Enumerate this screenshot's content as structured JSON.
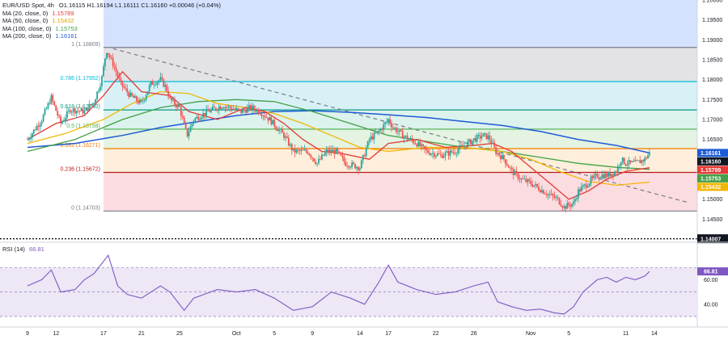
{
  "header": {
    "symbol": "EUR/USD Spot, 4h",
    "ohlc": "O1.16115 H1.16194 L1.16111 C1.16160 +0.00046 (+0.04%)"
  },
  "indicators": [
    {
      "label": "MA (20, close, 0)",
      "value": "1.15789",
      "color": "#e53935"
    },
    {
      "label": "MA (50, close, 0)",
      "value": "1.15432",
      "color": "#f2b705"
    },
    {
      "label": "MA (100, close, 0)",
      "value": "1.15753",
      "color": "#43a047"
    },
    {
      "label": "MA (200, close, 0)",
      "value": "1.16161",
      "color": "#1e5bd6"
    }
  ],
  "colors": {
    "up": "#26a69a",
    "down": "#ef5350",
    "ma20": "#e53935",
    "ma50": "#f2b705",
    "ma100": "#43a047",
    "ma200": "#1e5bd6",
    "rsi": "#7e57c2",
    "trendline": "#787b86",
    "current_price_box": "#131722"
  },
  "chart_data": {
    "type": "candlestick",
    "ylim": [
      1.14,
      1.2
    ],
    "y_ticks": [
      "1.14500",
      "1.15000",
      "1.15500",
      "1.16000",
      "1.16500",
      "1.17000",
      "1.17500",
      "1.18000",
      "1.18500",
      "1.19000",
      "1.19500",
      "1.20000"
    ],
    "x_ticks": [
      {
        "label": "9",
        "day": 0
      },
      {
        "label": "12",
        "day": 3
      },
      {
        "label": "17",
        "day": 8
      },
      {
        "label": "21",
        "day": 12
      },
      {
        "label": "25",
        "day": 16
      },
      {
        "label": "Oct",
        "day": 22
      },
      {
        "label": "5",
        "day": 26
      },
      {
        "label": "9",
        "day": 30
      },
      {
        "label": "14",
        "day": 35
      },
      {
        "label": "17",
        "day": 38
      },
      {
        "label": "22",
        "day": 43
      },
      {
        "label": "26",
        "day": 47
      },
      {
        "label": "Nov",
        "day": 53
      },
      {
        "label": "5",
        "day": 57
      },
      {
        "label": "11",
        "day": 63
      },
      {
        "label": "14",
        "day": 66
      }
    ],
    "fibonacci": [
      {
        "label": "1 (1.18809)",
        "level": 1.18809,
        "line": "#787b86"
      },
      {
        "label": "0.786 (1.17952)",
        "level": 1.17952,
        "line": "#00bcd4"
      },
      {
        "label": "0.618 (1.17240)",
        "level": 1.1724,
        "line": "#089981"
      },
      {
        "label": "0.5 (1.16758)",
        "level": 1.16758,
        "line": "#4caf50"
      },
      {
        "label": "0.382 (1.16271)",
        "level": 1.16271,
        "line": "#f57c00"
      },
      {
        "label": "0.236 (1.15672)",
        "level": 1.15672,
        "line": "#b71c1c"
      },
      {
        "label": "0 (1.14703)",
        "level": 1.14703,
        "line": "#787b86"
      }
    ],
    "fib_bands": [
      {
        "from": 1.18809,
        "to": 1.2,
        "color": "#d4e2ff"
      },
      {
        "from": 1.17952,
        "to": 1.18809,
        "color": "#e3e3e6"
      },
      {
        "from": 1.1724,
        "to": 1.17952,
        "color": "#d8f1f7"
      },
      {
        "from": 1.16758,
        "to": 1.1724,
        "color": "#dcf2ec"
      },
      {
        "from": 1.16271,
        "to": 1.16758,
        "color": "#e4f3e2"
      },
      {
        "from": 1.15672,
        "to": 1.16271,
        "color": "#fdefdb"
      },
      {
        "from": 1.14703,
        "to": 1.15672,
        "color": "#fbdde1"
      }
    ],
    "horizontal_level": {
      "value": 1.14007,
      "label": "1.14007"
    },
    "trendline": {
      "from": {
        "day": 9.0,
        "price": 1.1878
      },
      "to": {
        "day": 69.5,
        "price": 1.1492
      }
    },
    "price_labels": [
      {
        "label": "1.16161",
        "value": 1.16161,
        "color": "#1e5bd6"
      },
      {
        "label": "1.16160",
        "value": 1.1616,
        "color": "#131722"
      },
      {
        "label": "1.15789",
        "value": 1.15789,
        "color": "#e53935"
      },
      {
        "label": "1.15753",
        "value": 1.15753,
        "color": "#43a047"
      },
      {
        "label": "1.15432",
        "value": 1.15432,
        "color": "#f2b705"
      }
    ],
    "close_path": [
      [
        0.0,
        1.165
      ],
      [
        1.5,
        1.17
      ],
      [
        2.5,
        1.1755
      ],
      [
        3.5,
        1.169
      ],
      [
        4.5,
        1.1725
      ],
      [
        6.0,
        1.172
      ],
      [
        7.0,
        1.1745
      ],
      [
        7.8,
        1.18
      ],
      [
        8.3,
        1.1875
      ],
      [
        9.0,
        1.184
      ],
      [
        9.8,
        1.179
      ],
      [
        10.8,
        1.176
      ],
      [
        12.0,
        1.174
      ],
      [
        13.0,
        1.179
      ],
      [
        14.0,
        1.18
      ],
      [
        14.6,
        1.178
      ],
      [
        15.0,
        1.175
      ],
      [
        16.0,
        1.173
      ],
      [
        16.8,
        1.166
      ],
      [
        17.5,
        1.17
      ],
      [
        19.0,
        1.172
      ],
      [
        20.5,
        1.1735
      ],
      [
        21.5,
        1.1728
      ],
      [
        22.5,
        1.172
      ],
      [
        23.5,
        1.173
      ],
      [
        24.5,
        1.172
      ],
      [
        25.5,
        1.17
      ],
      [
        27.0,
        1.166
      ],
      [
        28.0,
        1.162
      ],
      [
        29.5,
        1.162
      ],
      [
        30.5,
        1.159
      ],
      [
        31.5,
        1.162
      ],
      [
        32.5,
        1.162
      ],
      [
        33.5,
        1.159
      ],
      [
        35.0,
        1.158
      ],
      [
        36.0,
        1.165
      ],
      [
        37.0,
        1.167
      ],
      [
        38.0,
        1.17
      ],
      [
        38.5,
        1.168
      ],
      [
        39.5,
        1.166
      ],
      [
        41.0,
        1.164
      ],
      [
        42.0,
        1.162
      ],
      [
        43.5,
        1.161
      ],
      [
        45.0,
        1.162
      ],
      [
        46.0,
        1.1635
      ],
      [
        47.0,
        1.165
      ],
      [
        48.0,
        1.166
      ],
      [
        48.6,
        1.1655
      ],
      [
        49.3,
        1.162
      ],
      [
        50.2,
        1.16
      ],
      [
        51.0,
        1.157
      ],
      [
        52.0,
        1.155
      ],
      [
        53.0,
        1.154
      ],
      [
        54.0,
        1.1525
      ],
      [
        55.0,
        1.151
      ],
      [
        55.8,
        1.15
      ],
      [
        56.5,
        1.148
      ],
      [
        57.5,
        1.149
      ],
      [
        58.0,
        1.152
      ],
      [
        59.0,
        1.154
      ],
      [
        60.0,
        1.156
      ],
      [
        61.0,
        1.156
      ],
      [
        62.0,
        1.157
      ],
      [
        62.5,
        1.16
      ],
      [
        63.0,
        1.159
      ],
      [
        64.0,
        1.159
      ],
      [
        65.0,
        1.16
      ],
      [
        65.5,
        1.1616
      ]
    ],
    "ma20": [
      [
        0.0,
        1.165
      ],
      [
        3.0,
        1.169
      ],
      [
        6.0,
        1.171
      ],
      [
        8.0,
        1.176
      ],
      [
        10.0,
        1.182
      ],
      [
        12.0,
        1.177
      ],
      [
        15.0,
        1.176
      ],
      [
        17.0,
        1.172
      ],
      [
        20.0,
        1.17
      ],
      [
        23.0,
        1.173
      ],
      [
        25.0,
        1.172
      ],
      [
        27.0,
        1.169
      ],
      [
        29.0,
        1.165
      ],
      [
        31.0,
        1.162
      ],
      [
        33.0,
        1.1615
      ],
      [
        36.0,
        1.16
      ],
      [
        38.0,
        1.164
      ],
      [
        41.0,
        1.165
      ],
      [
        44.0,
        1.163
      ],
      [
        47.0,
        1.1635
      ],
      [
        49.0,
        1.164
      ],
      [
        51.0,
        1.162
      ],
      [
        53.0,
        1.158
      ],
      [
        55.0,
        1.154
      ],
      [
        57.0,
        1.15
      ],
      [
        59.0,
        1.152
      ],
      [
        61.0,
        1.155
      ],
      [
        63.0,
        1.157
      ],
      [
        65.5,
        1.1579
      ]
    ],
    "ma50": [
      [
        0.0,
        1.164
      ],
      [
        4.0,
        1.1665
      ],
      [
        8.0,
        1.17
      ],
      [
        11.0,
        1.174
      ],
      [
        14.0,
        1.177
      ],
      [
        17.0,
        1.1765
      ],
      [
        20.0,
        1.174
      ],
      [
        23.0,
        1.173
      ],
      [
        26.0,
        1.1715
      ],
      [
        29.0,
        1.169
      ],
      [
        32.0,
        1.166
      ],
      [
        35.0,
        1.163
      ],
      [
        38.0,
        1.162
      ],
      [
        42.0,
        1.163
      ],
      [
        46.0,
        1.163
      ],
      [
        50.0,
        1.162
      ],
      [
        53.0,
        1.16
      ],
      [
        56.0,
        1.157
      ],
      [
        59.0,
        1.1545
      ],
      [
        62.0,
        1.1535
      ],
      [
        65.5,
        1.1543
      ]
    ],
    "ma100": [
      [
        0.0,
        1.162
      ],
      [
        5.0,
        1.165
      ],
      [
        10.0,
        1.17
      ],
      [
        14.0,
        1.173
      ],
      [
        18.0,
        1.1745
      ],
      [
        22.0,
        1.175
      ],
      [
        26.0,
        1.1745
      ],
      [
        30.0,
        1.172
      ],
      [
        34.0,
        1.169
      ],
      [
        38.0,
        1.166
      ],
      [
        42.0,
        1.1645
      ],
      [
        46.0,
        1.163
      ],
      [
        50.0,
        1.162
      ],
      [
        54.0,
        1.1605
      ],
      [
        58.0,
        1.159
      ],
      [
        62.0,
        1.158
      ],
      [
        65.5,
        1.1575
      ]
    ],
    "ma200": [
      [
        0.0,
        1.163
      ],
      [
        5.0,
        1.164
      ],
      [
        10.0,
        1.166
      ],
      [
        14.0,
        1.168
      ],
      [
        18.0,
        1.1695
      ],
      [
        22.0,
        1.171
      ],
      [
        26.0,
        1.172
      ],
      [
        30.0,
        1.1722
      ],
      [
        34.0,
        1.1718
      ],
      [
        38.0,
        1.1712
      ],
      [
        42.0,
        1.1705
      ],
      [
        46.0,
        1.1695
      ],
      [
        50.0,
        1.1685
      ],
      [
        54.0,
        1.167
      ],
      [
        58.0,
        1.165
      ],
      [
        62.0,
        1.1635
      ],
      [
        65.5,
        1.1616
      ]
    ],
    "rsi": {
      "label": "RSI (14)",
      "value": "66.81",
      "ylim": [
        26,
        84
      ],
      "y_ticks": [
        "40.00",
        "60.00"
      ],
      "guides": [
        30,
        50,
        70
      ],
      "values": [
        [
          0.0,
          55
        ],
        [
          1.5,
          60
        ],
        [
          2.5,
          68
        ],
        [
          3.5,
          50
        ],
        [
          5.0,
          52
        ],
        [
          6.0,
          60
        ],
        [
          7.0,
          65
        ],
        [
          8.0,
          75
        ],
        [
          8.5,
          80
        ],
        [
          9.5,
          55
        ],
        [
          10.5,
          48
        ],
        [
          12.0,
          45
        ],
        [
          14.0,
          55
        ],
        [
          15.0,
          50
        ],
        [
          16.5,
          35
        ],
        [
          17.5,
          45
        ],
        [
          20.0,
          52
        ],
        [
          22.0,
          50
        ],
        [
          24.0,
          52
        ],
        [
          26.0,
          45
        ],
        [
          28.0,
          35
        ],
        [
          30.0,
          38
        ],
        [
          32.0,
          50
        ],
        [
          34.0,
          45
        ],
        [
          35.5,
          40
        ],
        [
          37.0,
          58
        ],
        [
          38.0,
          72
        ],
        [
          39.0,
          58
        ],
        [
          41.0,
          52
        ],
        [
          43.0,
          48
        ],
        [
          45.0,
          50
        ],
        [
          47.0,
          55
        ],
        [
          48.5,
          58
        ],
        [
          49.5,
          42
        ],
        [
          51.0,
          38
        ],
        [
          52.5,
          35
        ],
        [
          54.0,
          36
        ],
        [
          55.5,
          33
        ],
        [
          56.5,
          32
        ],
        [
          57.5,
          38
        ],
        [
          58.5,
          50
        ],
        [
          60.0,
          60
        ],
        [
          61.0,
          62
        ],
        [
          62.0,
          58
        ],
        [
          63.0,
          62
        ],
        [
          64.0,
          60
        ],
        [
          65.0,
          63
        ],
        [
          65.5,
          66.81
        ]
      ]
    }
  }
}
